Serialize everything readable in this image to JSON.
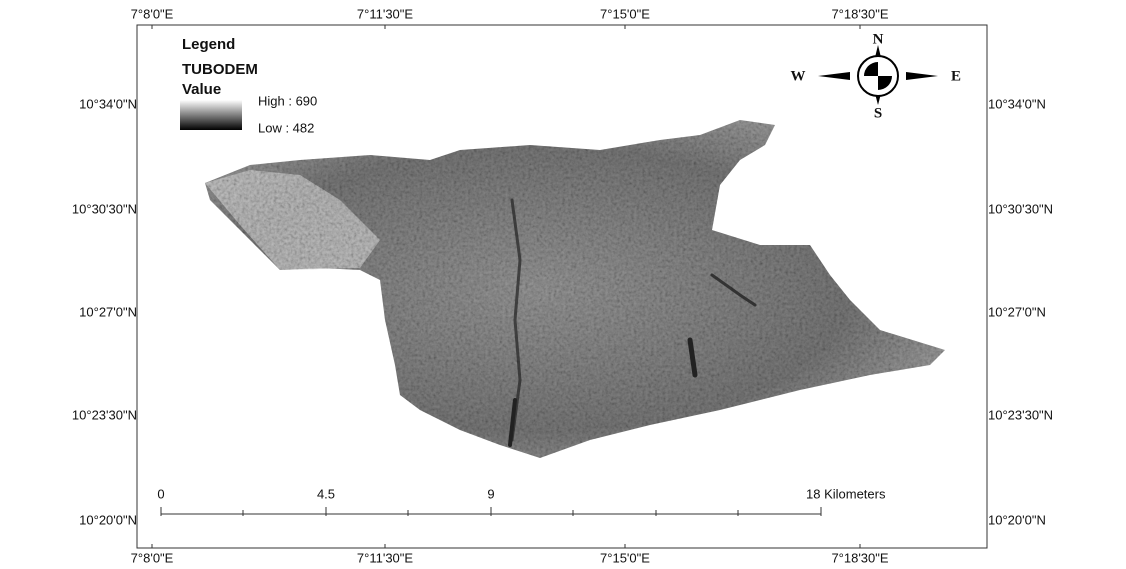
{
  "axes": {
    "top": [
      "7°8'0\"E",
      "7°11'30\"E",
      "7°15'0\"E",
      "7°18'30\"E"
    ],
    "bottom": [
      "7°8'0\"E",
      "7°11'30\"E",
      "7°15'0\"E",
      "7°18'30\"E"
    ],
    "left": [
      "10°34'0\"N",
      "10°30'30\"N",
      "10°27'0\"N",
      "10°23'30\"N",
      "10°20'0\"N"
    ],
    "right": [
      "10°34'0\"N",
      "10°30'30\"N",
      "10°27'0\"N",
      "10°23'30\"N",
      "10°20'0\"N"
    ]
  },
  "legend": {
    "title": "Legend",
    "layer": "TUBODEM",
    "field": "Value",
    "high": "High : 690",
    "low": "Low : 482"
  },
  "compass": {
    "n": "N",
    "s": "S",
    "w": "W",
    "e": "E"
  },
  "scale_bar": {
    "labels": [
      "0",
      "4.5",
      "9",
      "18 Kilometers"
    ]
  }
}
